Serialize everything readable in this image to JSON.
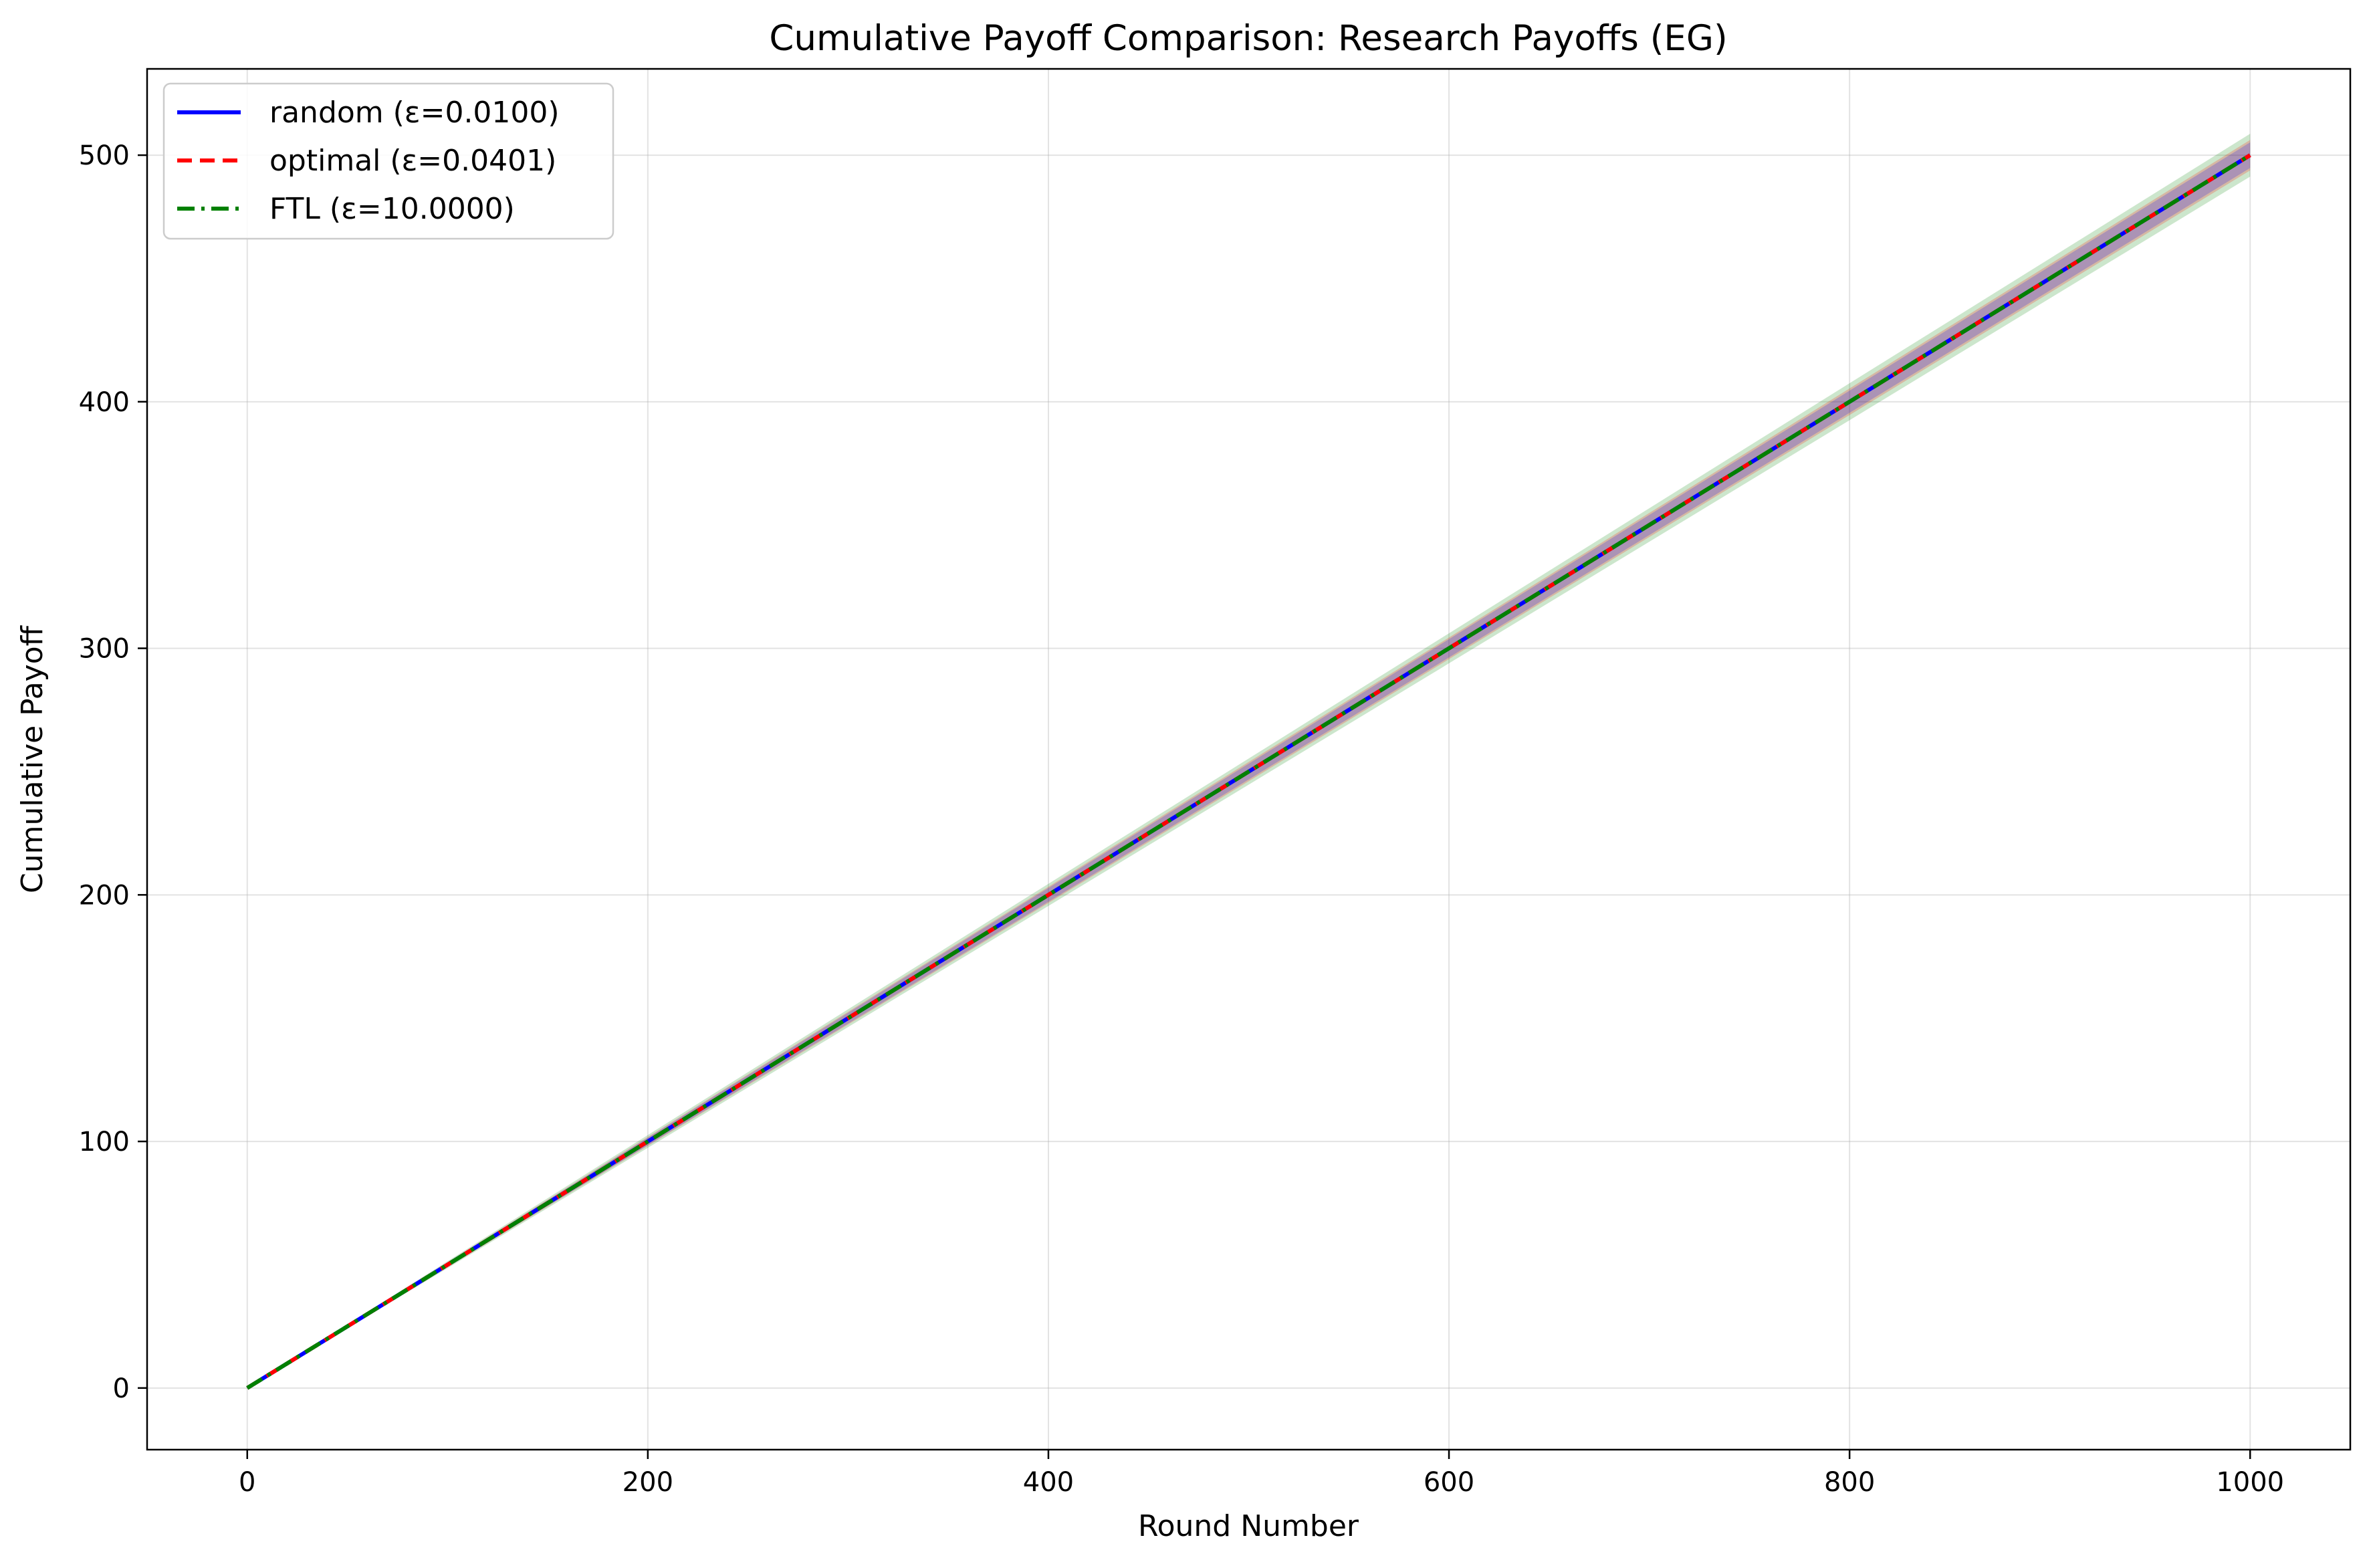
{
  "chart_data": {
    "type": "line",
    "title": "Cumulative Payoff Comparison: Research Payoffs (EG)",
    "xlabel": "Round Number",
    "ylabel": "Cumulative Payoff",
    "xlim": [
      -50,
      1050
    ],
    "ylim": [
      -25,
      535
    ],
    "xticks": [
      0,
      200,
      400,
      600,
      800,
      1000
    ],
    "yticks": [
      0,
      100,
      200,
      300,
      400,
      500
    ],
    "grid": true,
    "legend_position": "top-left",
    "series": [
      {
        "name": "random (ε=0.0100)",
        "color": "#0000ff",
        "style": "solid",
        "band_color": "#0000ff",
        "x": [
          0,
          100,
          200,
          300,
          400,
          500,
          600,
          700,
          800,
          900,
          1000
        ],
        "values": [
          0,
          50,
          100,
          150,
          200,
          250,
          300,
          350,
          400,
          450,
          500
        ],
        "band_halfwidth": [
          0,
          0.8,
          1.5,
          2.2,
          2.8,
          3.2,
          3.7,
          4.1,
          4.5,
          4.9,
          5.2
        ]
      },
      {
        "name": "optimal (ε=0.0401)",
        "color": "#ff0000",
        "style": "dashed",
        "band_color": "#ff0000",
        "x": [
          0,
          100,
          200,
          300,
          400,
          500,
          600,
          700,
          800,
          900,
          1000
        ],
        "values": [
          0,
          50,
          100,
          150,
          200,
          250,
          300,
          350,
          400,
          450,
          500
        ],
        "band_halfwidth": [
          0,
          1.0,
          1.8,
          2.6,
          3.3,
          3.9,
          4.4,
          4.9,
          5.4,
          5.8,
          6.2
        ]
      },
      {
        "name": "FTL (ε=10.0000)",
        "color": "#008000",
        "style": "dashdot",
        "band_color": "#008000",
        "x": [
          0,
          100,
          200,
          300,
          400,
          500,
          600,
          700,
          800,
          900,
          1000
        ],
        "values": [
          0,
          50,
          100,
          150,
          200,
          250,
          300,
          350,
          400,
          450,
          500
        ],
        "band_halfwidth": [
          0,
          1.4,
          2.6,
          3.6,
          4.5,
          5.3,
          6.1,
          6.8,
          7.5,
          8.1,
          8.7
        ]
      }
    ]
  }
}
